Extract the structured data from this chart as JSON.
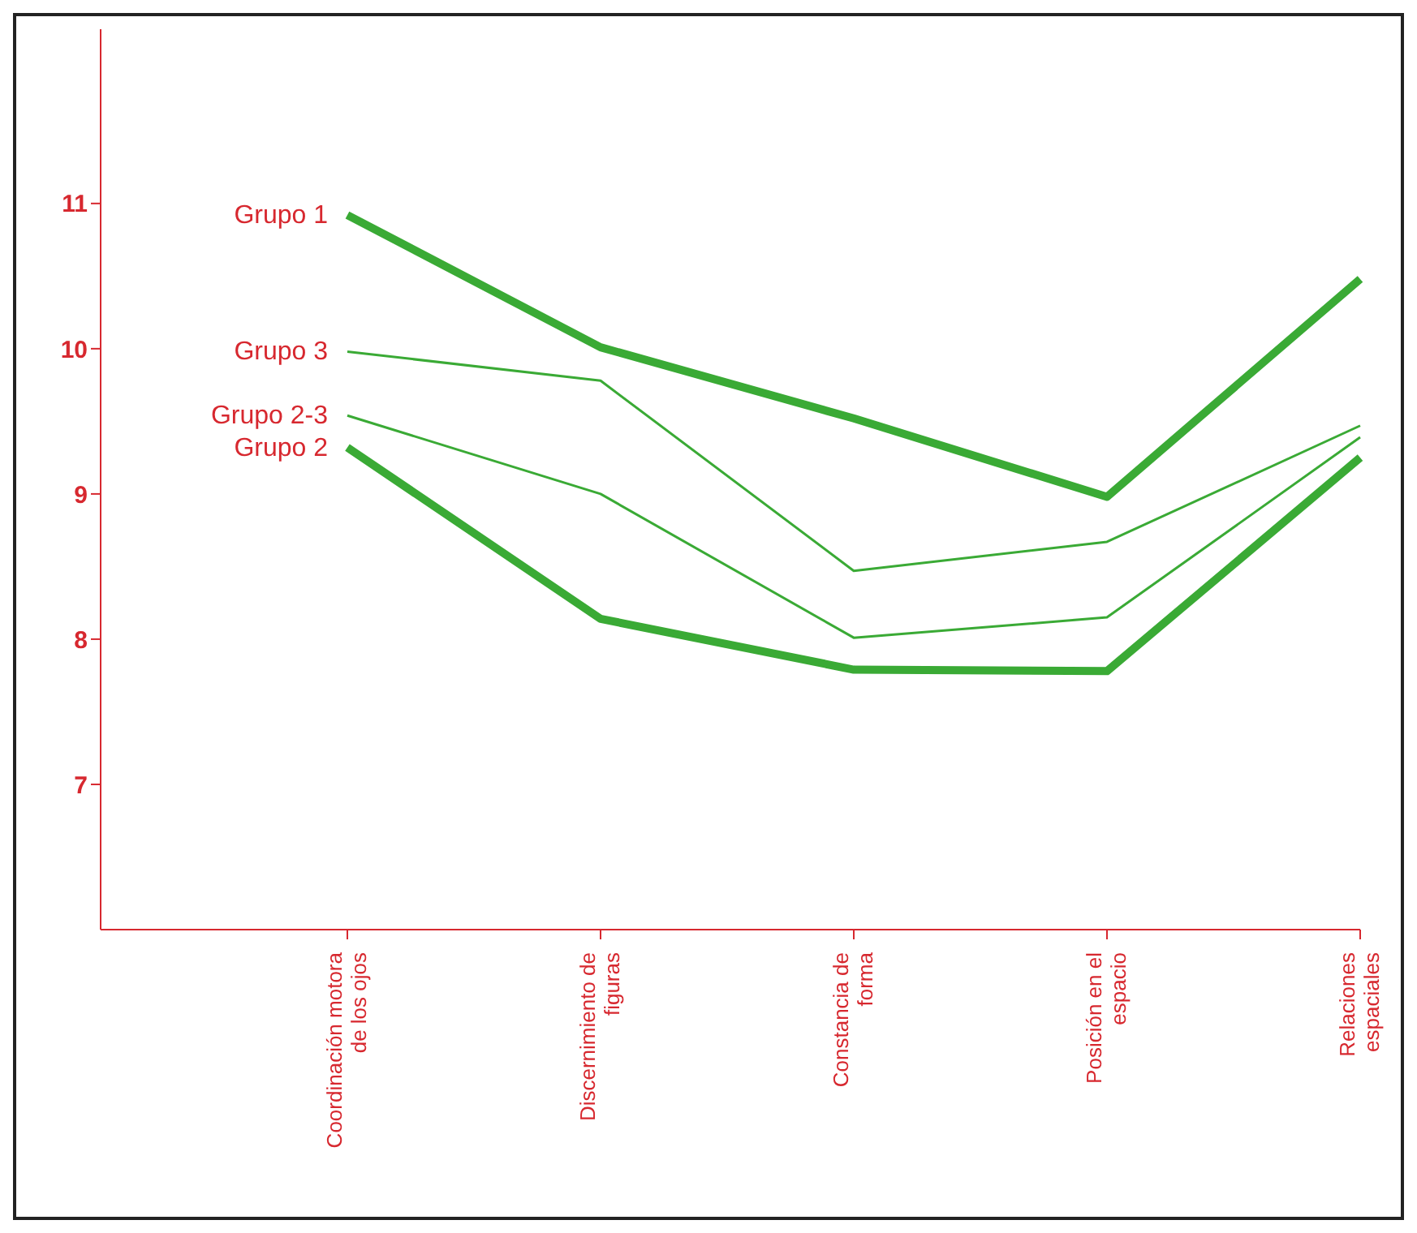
{
  "chart_data": {
    "type": "line",
    "categories": [
      "Coordinación motora\nde los ojos",
      "Discernimiento de\nfiguras",
      "Constancia de\nforma",
      "Posición en el\nespacio",
      "Relaciones\nespaciales"
    ],
    "series": [
      {
        "name": "Grupo 1",
        "color": "#3aaa35",
        "values": [
          10.92,
          10.01,
          9.52,
          8.98,
          10.48
        ]
      },
      {
        "name": "Grupo 3",
        "color": "#3aaa35",
        "values": [
          9.98,
          9.78,
          8.47,
          8.67,
          9.47
        ]
      },
      {
        "name": "Grupo 2-3",
        "color": "#3aaa35",
        "values": [
          9.54,
          9.0,
          8.01,
          8.15,
          9.39
        ]
      },
      {
        "name": "Grupo 2",
        "color": "#3aaa35",
        "values": [
          9.32,
          8.14,
          7.79,
          7.78,
          9.25
        ]
      }
    ],
    "ylim": [
      6,
      12.2
    ],
    "yticks": [
      7,
      8,
      9,
      10,
      11
    ],
    "grid": false,
    "legend": false,
    "marker": "none",
    "line_style": "solid"
  }
}
